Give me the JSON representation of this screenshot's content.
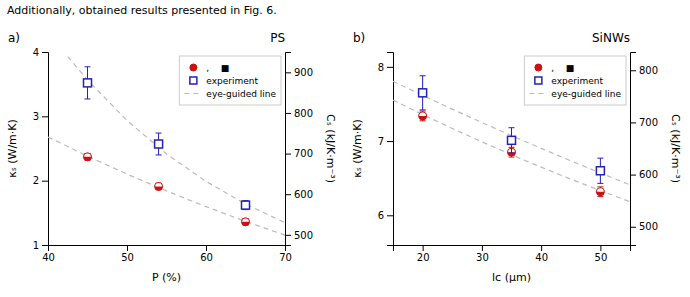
{
  "title": "Additionally, obtained results presented in Fig. 6.",
  "chart_data": [
    {
      "type": "scatter",
      "title": "PS",
      "annotations": [
        "a)"
      ],
      "xlabel": "P (%)",
      "ylabel": "κₛ (W/m·K)",
      "y2label": "Cₛ (kJ/K·m⁻³)",
      "xlim": [
        40,
        70
      ],
      "xticks": [
        40,
        50,
        60,
        70
      ],
      "ylim": [
        1,
        4
      ],
      "yticks": [
        1,
        2,
        3,
        4
      ],
      "y2lim": [
        475,
        950
      ],
      "y2ticks": [
        500,
        600,
        700,
        800,
        900
      ],
      "legend": "upper right",
      "series": [
        {
          "name": ",    ■",
          "axis": "y2",
          "color": "#cc1111",
          "marker": "circle",
          "x": [
            45,
            54,
            65
          ],
          "values": [
            691.9167,
            619.0833,
            532
          ],
          "yerr": [
            7.9167,
            7.9167,
            7.9167
          ]
        },
        {
          "name": "experiment",
          "color": "#2222bb",
          "marker": "square",
          "x": [
            45,
            54,
            65
          ],
          "values": [
            3.52,
            2.57,
            1.62
          ],
          "yerr": [
            0.25,
            0.17,
            0.07
          ]
        },
        {
          "name": "eye-guided line",
          "type": "line",
          "line_style": "dashed",
          "color": "#bbbbbb",
          "x": [
            42.5,
            45,
            50,
            55,
            60,
            65,
            70
          ],
          "values": [
            3.929,
            3.565,
            2.935,
            2.416,
            1.988,
            1.637,
            1.347
          ]
        },
        {
          "name": "eye-guided line",
          "type": "line",
          "line_style": "dashed",
          "color": "#bbbbbb",
          "axis": "y2",
          "x": [
            40,
            45,
            50,
            55,
            60,
            65,
            70
          ],
          "values": [
            740.89,
            693.7,
            649.51,
            608.13,
            569.4,
            533.12,
            499.16
          ]
        }
      ]
    },
    {
      "type": "scatter",
      "title": "SiNWs",
      "annotations": [
        "b)"
      ],
      "xlabel": "lc (μm)",
      "ylabel": "κₛ (W/m·K)",
      "y2label": "Cₛ (kJ/K·m⁻³)",
      "xlim": [
        15,
        55
      ],
      "xticks": [
        20,
        30,
        40,
        50
      ],
      "ylim": [
        5.6,
        8.2
      ],
      "yticks": [
        6,
        7,
        8
      ],
      "y2lim": [
        465,
        835
      ],
      "y2ticks": [
        500,
        600,
        700,
        800
      ],
      "legend": "upper right",
      "series": [
        {
          "name": ",    ■",
          "axis": "y2",
          "color": "#cc1111",
          "marker": "circle",
          "x": [
            20,
            35,
            50
          ],
          "values": [
            712.4615,
            642.8846,
            567.0769
          ],
          "yerr": [
            9.3462,
            9.3462,
            9.3462
          ]
        },
        {
          "name": "experiment",
          "color": "#2222bb",
          "marker": "square",
          "x": [
            20,
            35,
            50
          ],
          "values": [
            7.65,
            7.01,
            6.6
          ],
          "yerr": [
            0.23,
            0.17,
            0.17
          ]
        },
        {
          "name": "eye-guided line",
          "type": "line",
          "line_style": "dashed",
          "color": "#bbbbbb",
          "x": [
            15,
            20,
            25,
            30,
            35,
            40,
            45,
            50,
            55
          ],
          "values": [
            7.805,
            7.616,
            7.43,
            7.25,
            7.074,
            6.902,
            6.734,
            6.57,
            6.411
          ]
        },
        {
          "name": "eye-guided line",
          "type": "line",
          "line_style": "dashed",
          "color": "#bbbbbb",
          "axis": "y2",
          "x": [
            15,
            20,
            25,
            30,
            35,
            40,
            45,
            50,
            55
          ],
          "values": [
            742.89,
            715.16,
            688.47,
            662.77,
            638.04,
            614.22,
            591.3,
            569.23,
            548.02
          ]
        }
      ]
    }
  ]
}
